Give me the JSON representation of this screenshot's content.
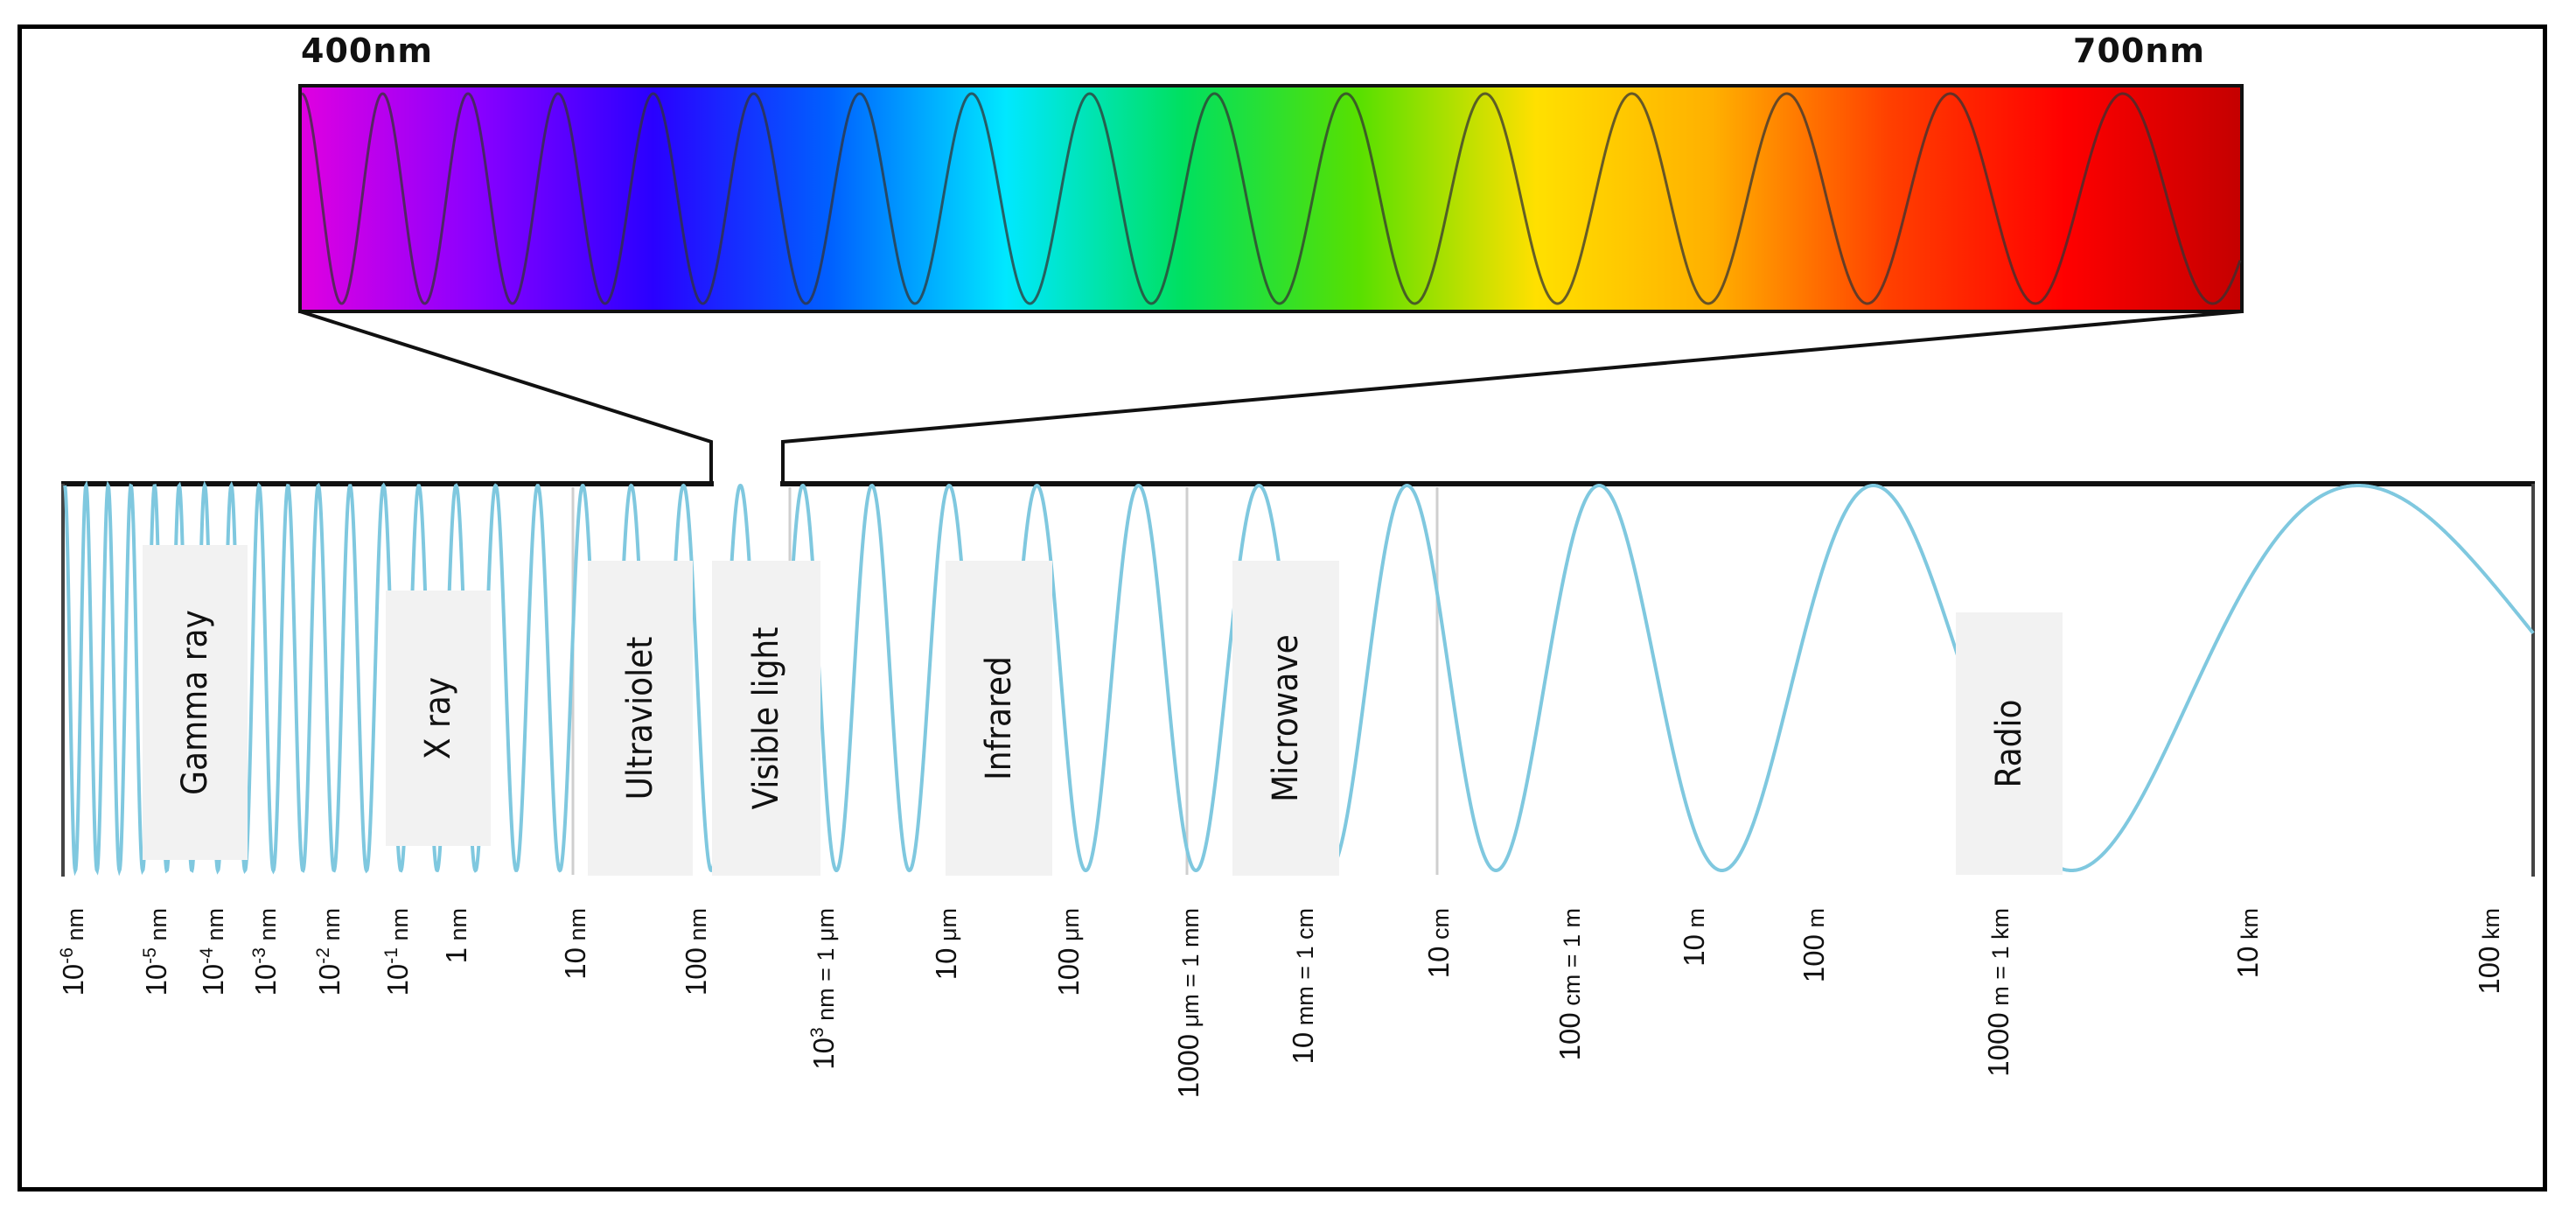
{
  "visible_spectrum": {
    "start_label": "400nm",
    "end_label": "700nm",
    "gradient_colors": [
      "#e000e0",
      "#8a00ff",
      "#2a00ff",
      "#0060ff",
      "#00e8ff",
      "#00e060",
      "#58e000",
      "#ffe000",
      "#ffb000",
      "#ff4000",
      "#ff0000",
      "#c40000"
    ]
  },
  "wave_color": "#7fc8df",
  "bands": [
    {
      "id": "gamma",
      "label": "Gamma ray"
    },
    {
      "id": "xray",
      "label": "X ray"
    },
    {
      "id": "uv",
      "label": "Ultraviolet"
    },
    {
      "id": "visible",
      "label": "Visible light"
    },
    {
      "id": "infrared",
      "label": "Infrared"
    },
    {
      "id": "microwave",
      "label": "Microwave"
    },
    {
      "id": "radio",
      "label": "Radio"
    }
  ],
  "ticks": [
    {
      "base": "10",
      "exp": "-6",
      "unit": "nm"
    },
    {
      "base": "10",
      "exp": "-5",
      "unit": "nm"
    },
    {
      "base": "10",
      "exp": "-4",
      "unit": "nm"
    },
    {
      "base": "10",
      "exp": "-3",
      "unit": "nm"
    },
    {
      "base": "10",
      "exp": "-2",
      "unit": "nm"
    },
    {
      "base": "10",
      "exp": "-1",
      "unit": "nm"
    },
    {
      "base": "1",
      "exp": "",
      "unit": "nm"
    },
    {
      "base": "10",
      "exp": "",
      "unit": "nm"
    },
    {
      "base": "100",
      "exp": "",
      "unit": "nm"
    },
    {
      "base": "10",
      "exp": "3",
      "unit": "nm = 1 μm"
    },
    {
      "base": "10",
      "exp": "",
      "unit": "μm"
    },
    {
      "base": "100",
      "exp": "",
      "unit": "μm"
    },
    {
      "base": "1000",
      "exp": "",
      "unit": "μm = 1 mm"
    },
    {
      "base": "10",
      "exp": "",
      "unit": "mm = 1 cm"
    },
    {
      "base": "10",
      "exp": "",
      "unit": "cm"
    },
    {
      "base": "100",
      "exp": "",
      "unit": "cm = 1 m"
    },
    {
      "base": "10",
      "exp": "",
      "unit": "m"
    },
    {
      "base": "100",
      "exp": "",
      "unit": "m"
    },
    {
      "base": "1000",
      "exp": "",
      "unit": "m = 1 km"
    },
    {
      "base": "10",
      "exp": "",
      "unit": "km"
    },
    {
      "base": "100",
      "exp": "",
      "unit": "km"
    }
  ]
}
